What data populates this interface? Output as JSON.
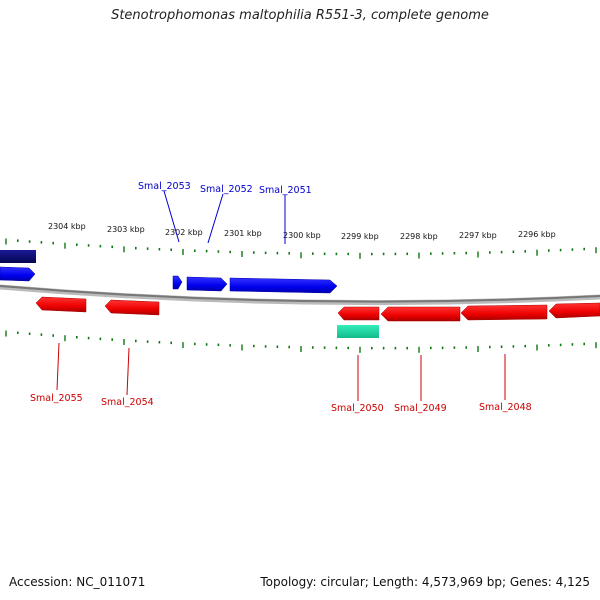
{
  "title": "Stenotrophomonas maltophilia R551-3, complete genome",
  "accession_label": "Accession: NC_011071",
  "summary_label": "Topology: circular; Length: 4,573,969 bp; Genes: 4,125",
  "colors": {
    "forward_gene": "#0000ee",
    "reverse_gene": "#ee0000",
    "other_feature": "#22ddaa",
    "dark_feature": "#0a0a7a",
    "tick": "#117711",
    "backbone": "#888888"
  },
  "scale_labels": [
    "2304 kbp",
    "2303 kbp",
    "2302 kbp",
    "2301 kbp",
    "2300 kbp",
    "2299 kbp",
    "2298 kbp",
    "2297 kbp",
    "2296 kbp"
  ],
  "gene_labels_top": [
    "Smal_2053",
    "Smal_2052",
    "Smal_2051"
  ],
  "gene_labels_bottom": [
    "Smal_2055",
    "Smal_2054",
    "Smal_2050",
    "Smal_2049",
    "Smal_2048"
  ]
}
